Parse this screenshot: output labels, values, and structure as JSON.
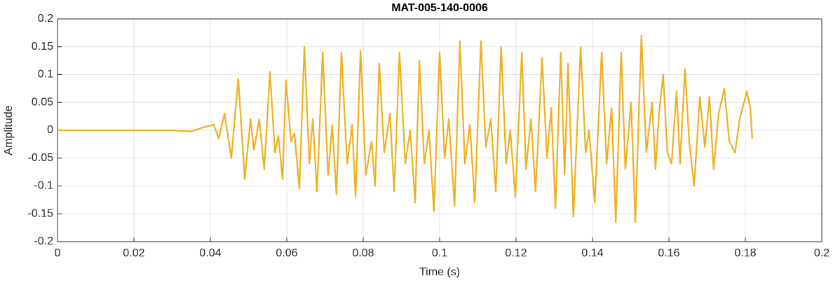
{
  "chart_data": {
    "type": "line",
    "title": "MAT-005-140-0006",
    "xlabel": "Time (s)",
    "ylabel": "Amplitude",
    "xlim": [
      0,
      0.2
    ],
    "xticks": [
      0,
      0.02,
      0.04,
      0.06,
      0.08,
      0.1,
      0.12,
      0.14,
      0.16,
      0.18,
      0.2
    ],
    "ylim": [
      -0.2,
      0.2
    ],
    "yticks": [
      -0.2,
      -0.15,
      -0.1,
      -0.05,
      0,
      0.05,
      0.1,
      0.15,
      0.2
    ],
    "grid": true,
    "series": [
      {
        "color": "#EDB120",
        "x": [
          0,
          0.01,
          0.02,
          0.03,
          0.035,
          0.038,
          0.0409,
          0.0422,
          0.0437,
          0.0455,
          0.0473,
          0.049,
          0.0505,
          0.0514,
          0.0528,
          0.0541,
          0.0556,
          0.0569,
          0.0578,
          0.0589,
          0.0598,
          0.0611,
          0.062,
          0.0633,
          0.0646,
          0.0659,
          0.0668,
          0.0679,
          0.0694,
          0.0708,
          0.0719,
          0.073,
          0.0743,
          0.0758,
          0.0771,
          0.078,
          0.0793,
          0.0807,
          0.0822,
          0.0831,
          0.0842,
          0.0855,
          0.087,
          0.0881,
          0.0895,
          0.091,
          0.0923,
          0.0936,
          0.0947,
          0.096,
          0.0972,
          0.0985,
          0.1,
          0.1013,
          0.1024,
          0.1039,
          0.1053,
          0.1066,
          0.1079,
          0.1092,
          0.1108,
          0.1121,
          0.1134,
          0.1147,
          0.1161,
          0.1174,
          0.1185,
          0.1198,
          0.1215,
          0.1226,
          0.1239,
          0.1251,
          0.1268,
          0.1281,
          0.1292,
          0.1303,
          0.1317,
          0.1327,
          0.1336,
          0.135,
          0.1369,
          0.1382,
          0.1391,
          0.1406,
          0.1424,
          0.1437,
          0.145,
          0.1461,
          0.1475,
          0.1486,
          0.1501,
          0.1512,
          0.1528,
          0.1541,
          0.1556,
          0.1565,
          0.1574,
          0.1585,
          0.1596,
          0.1607,
          0.162,
          0.1629,
          0.1642,
          0.1653,
          0.1666,
          0.1681,
          0.1694,
          0.1706,
          0.1717,
          0.173,
          0.1745,
          0.1758,
          0.1773,
          0.1785,
          0.1804,
          0.1813,
          0.1818
        ],
        "values": [
          0,
          0,
          0,
          0,
          -0.002,
          0.005,
          0.01,
          -0.015,
          0.03,
          -0.05,
          0.093,
          -0.088,
          0.02,
          -0.035,
          0.02,
          -0.07,
          0.105,
          -0.04,
          -0.01,
          -0.088,
          0.09,
          -0.02,
          -0.005,
          -0.105,
          0.15,
          -0.06,
          0.02,
          -0.11,
          0.14,
          -0.08,
          0.01,
          -0.115,
          0.14,
          -0.06,
          0.01,
          -0.12,
          0.143,
          -0.08,
          -0.02,
          -0.1,
          0.12,
          -0.04,
          0.03,
          -0.11,
          0.14,
          -0.06,
          0,
          -0.13,
          0.125,
          -0.06,
          0,
          -0.145,
          0.14,
          -0.05,
          0.02,
          -0.135,
          0.16,
          -0.06,
          0.01,
          -0.13,
          0.16,
          -0.03,
          0.02,
          -0.11,
          0.15,
          -0.06,
          0,
          -0.12,
          0.14,
          -0.07,
          0.02,
          -0.11,
          0.13,
          -0.05,
          0.04,
          -0.14,
          0.14,
          -0.08,
          0.12,
          -0.155,
          0.15,
          -0.04,
          0,
          -0.13,
          0.14,
          -0.06,
          0.04,
          -0.165,
          0.14,
          -0.07,
          0.05,
          -0.165,
          0.17,
          -0.04,
          0.05,
          -0.07,
          0.03,
          0.1,
          -0.04,
          -0.06,
          0.07,
          -0.06,
          0.11,
          -0.02,
          -0.1,
          0.06,
          -0.03,
          0.06,
          -0.07,
          0.03,
          0.075,
          -0.02,
          -0.04,
          0.02,
          0.07,
          0.04,
          -0.015
        ]
      }
    ]
  }
}
